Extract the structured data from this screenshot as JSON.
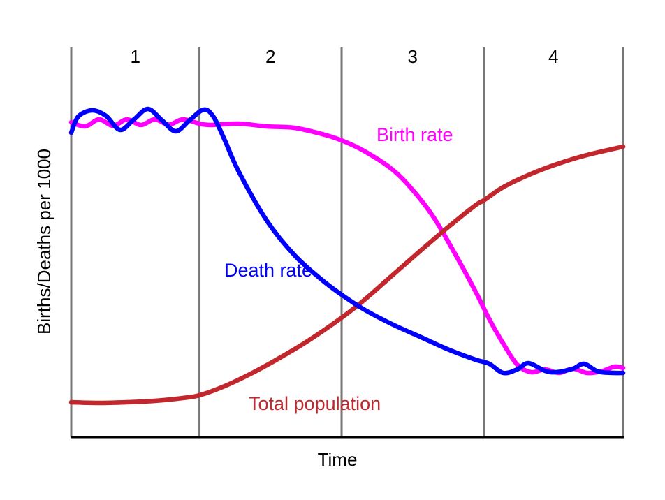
{
  "chart_data": {
    "type": "line",
    "title": "",
    "xlabel": "Time",
    "ylabel": "Births/Deaths per 1000",
    "xlim": [
      0,
      4
    ],
    "ylim": [
      0,
      100
    ],
    "grid": false,
    "stages": [
      "1",
      "2",
      "3",
      "4"
    ],
    "stage_boundaries": [
      0,
      0.92,
      1.94,
      2.96,
      3.96
    ],
    "series": [
      {
        "name": "Birth rate",
        "color": "#ff00ff",
        "points": [
          [
            0.0,
            85.0
          ],
          [
            0.1,
            83.8
          ],
          [
            0.2,
            85.8
          ],
          [
            0.3,
            84.0
          ],
          [
            0.4,
            85.8
          ],
          [
            0.5,
            84.2
          ],
          [
            0.6,
            85.8
          ],
          [
            0.7,
            84.3
          ],
          [
            0.8,
            85.8
          ],
          [
            0.92,
            84.6
          ],
          [
            1.0,
            84.2
          ],
          [
            1.2,
            84.6
          ],
          [
            1.4,
            83.8
          ],
          [
            1.6,
            83.4
          ],
          [
            1.8,
            81.6
          ],
          [
            1.94,
            79.8
          ],
          [
            2.1,
            76.8
          ],
          [
            2.3,
            71.6
          ],
          [
            2.45,
            65.6
          ],
          [
            2.6,
            57.8
          ],
          [
            2.75,
            47.6
          ],
          [
            2.9,
            36.6
          ],
          [
            3.0,
            28.6
          ],
          [
            3.1,
            21.6
          ],
          [
            3.2,
            15.6
          ],
          [
            3.3,
            13.4
          ],
          [
            3.4,
            14.2
          ],
          [
            3.5,
            13.2
          ],
          [
            3.6,
            14.4
          ],
          [
            3.7,
            13.2
          ],
          [
            3.8,
            13.6
          ],
          [
            3.9,
            15.0
          ],
          [
            3.96,
            14.6
          ]
        ]
      },
      {
        "name": "Death rate",
        "color": "#0000ff",
        "points": [
          [
            0.0,
            82.0
          ],
          [
            0.05,
            86.6
          ],
          [
            0.15,
            88.4
          ],
          [
            0.25,
            86.8
          ],
          [
            0.35,
            82.8
          ],
          [
            0.45,
            85.8
          ],
          [
            0.55,
            88.8
          ],
          [
            0.65,
            85.6
          ],
          [
            0.75,
            82.4
          ],
          [
            0.85,
            85.6
          ],
          [
            0.95,
            88.6
          ],
          [
            1.02,
            86.6
          ],
          [
            1.1,
            80.0
          ],
          [
            1.2,
            71.0
          ],
          [
            1.4,
            57.0
          ],
          [
            1.6,
            47.0
          ],
          [
            1.8,
            39.8
          ],
          [
            1.94,
            35.6
          ],
          [
            2.1,
            31.4
          ],
          [
            2.3,
            27.2
          ],
          [
            2.5,
            23.6
          ],
          [
            2.7,
            20.0
          ],
          [
            2.9,
            17.0
          ],
          [
            3.0,
            15.8
          ],
          [
            3.1,
            13.2
          ],
          [
            3.2,
            14.2
          ],
          [
            3.28,
            16.0
          ],
          [
            3.4,
            13.8
          ],
          [
            3.48,
            13.4
          ],
          [
            3.6,
            14.4
          ],
          [
            3.68,
            15.8
          ],
          [
            3.78,
            13.6
          ],
          [
            3.9,
            13.2
          ],
          [
            3.96,
            13.2
          ]
        ]
      },
      {
        "name": "Total population",
        "color": "#c1272d",
        "points": [
          [
            0.0,
            4.8
          ],
          [
            0.2,
            4.6
          ],
          [
            0.4,
            4.8
          ],
          [
            0.6,
            5.2
          ],
          [
            0.8,
            6.0
          ],
          [
            0.92,
            6.8
          ],
          [
            1.1,
            9.4
          ],
          [
            1.3,
            13.2
          ],
          [
            1.5,
            17.6
          ],
          [
            1.7,
            22.4
          ],
          [
            1.94,
            29.0
          ],
          [
            2.1,
            34.0
          ],
          [
            2.3,
            41.0
          ],
          [
            2.5,
            48.0
          ],
          [
            2.7,
            54.8
          ],
          [
            2.9,
            61.2
          ],
          [
            2.96,
            62.6
          ],
          [
            3.1,
            66.4
          ],
          [
            3.3,
            70.2
          ],
          [
            3.5,
            73.2
          ],
          [
            3.7,
            75.6
          ],
          [
            3.96,
            78.0
          ]
        ]
      }
    ]
  }
}
